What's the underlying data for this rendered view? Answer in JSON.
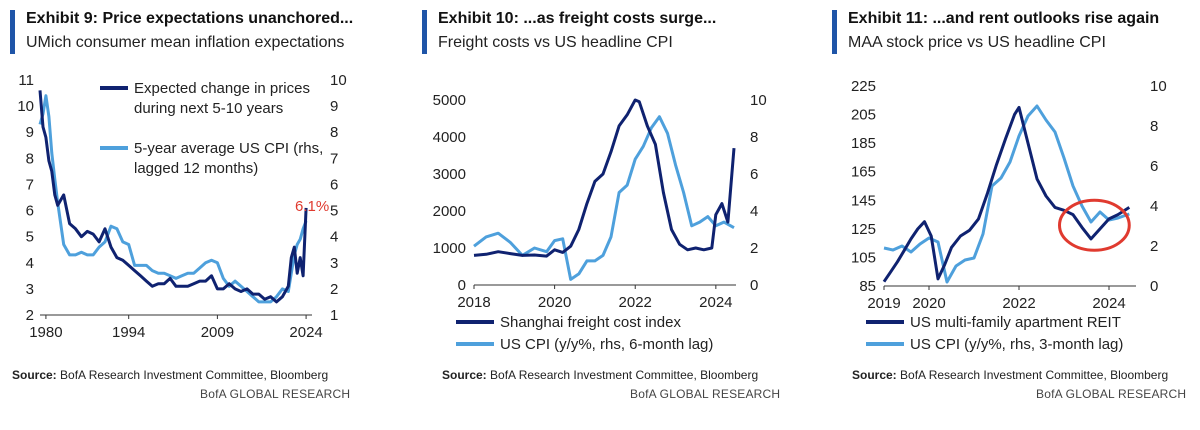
{
  "colors": {
    "dark": "#0f2270",
    "light": "#4ea0dc",
    "highlight": "#e03a2f",
    "accent_bar": "#1f55a8"
  },
  "source": {
    "label": "Source:",
    "text": "BofA Research Investment Committee, Bloomberg"
  },
  "brand": "BofA GLOBAL RESEARCH",
  "panels": [
    {
      "title": "Exhibit 9: Price expectations unanchored...",
      "subtitle": "UMich consumer mean inflation expectations",
      "chart_data": {
        "type": "line",
        "x_ticks": [
          "1980",
          "1994",
          "2009",
          "2024"
        ],
        "xlim": [
          1979,
          2025
        ],
        "ylim_left": [
          2,
          11
        ],
        "ylim_right": [
          1,
          10
        ],
        "y_ticks_left": [
          "2",
          "3",
          "4",
          "5",
          "6",
          "7",
          "8",
          "9",
          "10",
          "11"
        ],
        "y_ticks_right": [
          "1",
          "2",
          "3",
          "4",
          "5",
          "6",
          "7",
          "8",
          "9",
          "10"
        ],
        "annotation": "6.1%",
        "series": [
          {
            "name": "Expected change in prices during next 5-10 years",
            "axis": "left",
            "x": [
              1979,
              1979.5,
              1980,
              1980.5,
              1981,
              1981.5,
              1982,
              1983,
              1984,
              1985,
              1986,
              1987,
              1988,
              1989,
              1990,
              1991,
              1992,
              1993,
              1994,
              1995,
              1996,
              1997,
              1998,
              1999,
              2000,
              2001,
              2002,
              2003,
              2004,
              2005,
              2006,
              2007,
              2008,
              2009,
              2010,
              2011,
              2012,
              2013,
              2014,
              2015,
              2016,
              2017,
              2018,
              2019,
              2020,
              2021,
              2021.5,
              2022,
              2022.5,
              2023,
              2023.5,
              2024
            ],
            "y": [
              10.6,
              9.2,
              8.8,
              7.9,
              7.5,
              6.6,
              6.2,
              6.6,
              5.5,
              5.3,
              5.0,
              5.2,
              5.1,
              4.8,
              5.3,
              4.6,
              4.2,
              4.1,
              3.9,
              3.7,
              3.5,
              3.3,
              3.1,
              3.2,
              3.2,
              3.4,
              3.1,
              3.1,
              3.1,
              3.2,
              3.3,
              3.3,
              3.5,
              3.0,
              3.0,
              3.2,
              3.0,
              2.9,
              3.0,
              2.8,
              2.8,
              2.6,
              2.7,
              2.5,
              2.7,
              3.1,
              4.2,
              4.6,
              3.6,
              4.2,
              3.5,
              6.1
            ]
          },
          {
            "name": "5-year average US CPI (rhs, lagged 12 months)",
            "axis": "right",
            "x": [
              1979,
              1979.5,
              1980,
              1980.5,
              1981,
              1981.5,
              1982,
              1983,
              1984,
              1985,
              1986,
              1987,
              1988,
              1989,
              1990,
              1991,
              1992,
              1993,
              1994,
              1995,
              1996,
              1997,
              1998,
              1999,
              2000,
              2001,
              2002,
              2003,
              2004,
              2005,
              2006,
              2007,
              2008,
              2009,
              2010,
              2011,
              2012,
              2013,
              2014,
              2015,
              2016,
              2017,
              2018,
              2019,
              2020,
              2021,
              2022,
              2022.5,
              2023,
              2023.5,
              2024
            ],
            "y": [
              8.3,
              8.7,
              9.4,
              8.6,
              7.2,
              6.2,
              5.3,
              3.7,
              3.3,
              3.3,
              3.4,
              3.3,
              3.3,
              3.6,
              3.8,
              4.4,
              4.3,
              3.8,
              3.7,
              2.9,
              2.9,
              2.9,
              2.7,
              2.6,
              2.6,
              2.5,
              2.4,
              2.5,
              2.6,
              2.6,
              2.8,
              3.0,
              3.1,
              3.0,
              2.4,
              2.1,
              2.3,
              2.1,
              1.9,
              1.7,
              1.5,
              1.5,
              1.5,
              1.7,
              2.0,
              1.9,
              3.3,
              3.7,
              3.9,
              4.3,
              4.6
            ]
          }
        ]
      }
    },
    {
      "title": "Exhibit 10: ...as freight costs surge...",
      "subtitle": "Freight costs vs US headline CPI",
      "chart_data": {
        "type": "line",
        "x_ticks": [
          "2018",
          "2020",
          "2022",
          "2024"
        ],
        "xlim": [
          2018,
          2024.5
        ],
        "ylim_left": [
          0,
          5000
        ],
        "ylim_right": [
          0,
          10
        ],
        "y_ticks_left": [
          "0",
          "1000",
          "2000",
          "3000",
          "4000",
          "5000"
        ],
        "y_ticks_right": [
          "0",
          "2",
          "4",
          "6",
          "8",
          "10"
        ],
        "series": [
          {
            "name": "Shanghai freight cost index",
            "axis": "left",
            "x": [
              2018.0,
              2018.3,
              2018.6,
              2018.9,
              2019.2,
              2019.5,
              2019.8,
              2020.0,
              2020.2,
              2020.4,
              2020.6,
              2020.8,
              2021.0,
              2021.2,
              2021.4,
              2021.6,
              2021.8,
              2022.0,
              2022.1,
              2022.3,
              2022.5,
              2022.7,
              2022.9,
              2023.1,
              2023.3,
              2023.5,
              2023.7,
              2023.9,
              2024.0,
              2024.15,
              2024.3,
              2024.45
            ],
            "y": [
              800,
              830,
              900,
              850,
              800,
              810,
              780,
              950,
              880,
              1050,
              1500,
              2200,
              2800,
              3000,
              3600,
              4300,
              4600,
              5000,
              4950,
              4300,
              3800,
              2500,
              1500,
              1100,
              950,
              1000,
              950,
              1000,
              1900,
              2200,
              1700,
              3700
            ]
          },
          {
            "name": "US CPI (y/y%, rhs, 6-month lag)",
            "axis": "right",
            "x": [
              2018.0,
              2018.3,
              2018.6,
              2018.9,
              2019.2,
              2019.5,
              2019.8,
              2020.0,
              2020.2,
              2020.4,
              2020.6,
              2020.8,
              2021.0,
              2021.2,
              2021.4,
              2021.6,
              2021.8,
              2022.0,
              2022.2,
              2022.4,
              2022.6,
              2022.8,
              2023.0,
              2023.2,
              2023.4,
              2023.6,
              2023.8,
              2024.0,
              2024.2,
              2024.45
            ],
            "y": [
              2.1,
              2.6,
              2.8,
              2.3,
              1.6,
              2.0,
              1.8,
              2.4,
              2.5,
              0.3,
              0.6,
              1.3,
              1.3,
              1.6,
              2.6,
              5.0,
              5.4,
              6.8,
              7.5,
              8.5,
              9.1,
              8.2,
              6.5,
              5.0,
              3.2,
              3.4,
              3.7,
              3.2,
              3.4,
              3.1
            ]
          }
        ]
      }
    },
    {
      "title": "Exhibit 11: ...and rent outlooks rise again",
      "subtitle": "MAA stock price vs US headline CPI",
      "chart_data": {
        "type": "line",
        "x_ticks": [
          "2019",
          "2020",
          "2022",
          "2024"
        ],
        "xlim": [
          2019,
          2024.6
        ],
        "ylim_left": [
          85,
          225
        ],
        "ylim_right": [
          0,
          10
        ],
        "y_ticks_left": [
          "85",
          "105",
          "125",
          "145",
          "165",
          "185",
          "205",
          "225"
        ],
        "y_ticks_right": [
          "0",
          "2",
          "4",
          "6",
          "8",
          "10"
        ],
        "series": [
          {
            "name": "US multi-family apartment REIT",
            "axis": "left",
            "x": [
              2019.0,
              2019.15,
              2019.3,
              2019.45,
              2019.6,
              2019.75,
              2019.9,
              2020.05,
              2020.2,
              2020.35,
              2020.5,
              2020.7,
              2020.9,
              2021.1,
              2021.3,
              2021.5,
              2021.7,
              2021.9,
              2022.0,
              2022.2,
              2022.4,
              2022.6,
              2022.8,
              2023.0,
              2023.2,
              2023.4,
              2023.6,
              2023.8,
              2024.0,
              2024.2,
              2024.45
            ],
            "y": [
              88,
              95,
              102,
              110,
              118,
              125,
              130,
              120,
              90,
              100,
              112,
              120,
              124,
              132,
              150,
              170,
              188,
              205,
              210,
              185,
              160,
              148,
              140,
              138,
              135,
              126,
              118,
              125,
              132,
              135,
              140
            ]
          },
          {
            "name": "US CPI (y/y%, rhs, 3-month lag)",
            "axis": "right",
            "x": [
              2019.0,
              2019.2,
              2019.4,
              2019.6,
              2019.8,
              2020.0,
              2020.2,
              2020.4,
              2020.6,
              2020.8,
              2021.0,
              2021.2,
              2021.4,
              2021.6,
              2021.8,
              2022.0,
              2022.2,
              2022.4,
              2022.6,
              2022.8,
              2023.0,
              2023.2,
              2023.4,
              2023.6,
              2023.8,
              2024.0,
              2024.2,
              2024.45
            ],
            "y": [
              1.9,
              1.8,
              2.0,
              1.7,
              2.1,
              2.4,
              2.2,
              0.2,
              1.0,
              1.3,
              1.4,
              2.6,
              5.0,
              5.4,
              6.2,
              7.5,
              8.5,
              9.0,
              8.3,
              7.7,
              6.4,
              5.0,
              4.0,
              3.2,
              3.7,
              3.3,
              3.4,
              3.6
            ]
          }
        ]
      }
    }
  ]
}
